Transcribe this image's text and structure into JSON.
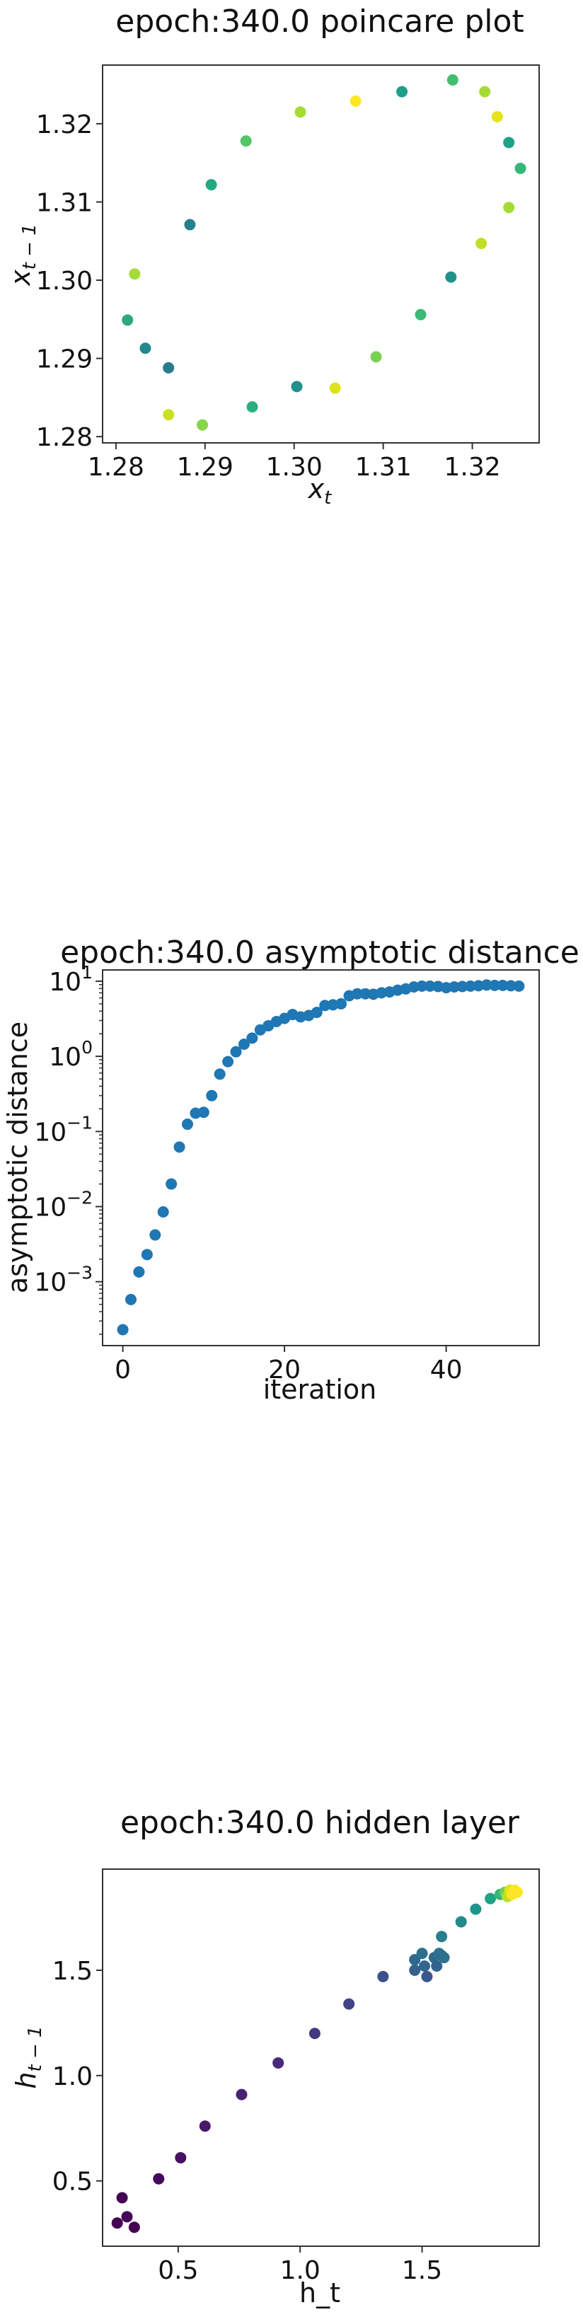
{
  "chart_data": [
    {
      "type": "scatter",
      "title": "epoch:340.0 poincare plot",
      "xlabel": "x_t",
      "ylabel": "x_{t-1}",
      "xlim": [
        1.2785,
        1.3275
      ],
      "ylim": [
        1.2792,
        1.3275
      ],
      "xticks": [
        1.28,
        1.29,
        1.3,
        1.31,
        1.32
      ],
      "xtick_labels": [
        "1.28",
        "1.29",
        "1.30",
        "1.31",
        "1.32"
      ],
      "yticks": [
        1.28,
        1.29,
        1.3,
        1.31,
        1.32
      ],
      "ytick_labels": [
        "1.28",
        "1.29",
        "1.30",
        "1.31",
        "1.32"
      ],
      "grid": false,
      "points": [
        {
          "x": 1.2813,
          "y": 1.2949,
          "color": "#2fa781"
        },
        {
          "x": 1.2821,
          "y": 1.3008,
          "color": "#a5db36"
        },
        {
          "x": 1.2833,
          "y": 1.2913,
          "color": "#23898e"
        },
        {
          "x": 1.2859,
          "y": 1.2888,
          "color": "#297b8e"
        },
        {
          "x": 1.2859,
          "y": 1.2828,
          "color": "#cae11f"
        },
        {
          "x": 1.2883,
          "y": 1.3071,
          "color": "#277f8e"
        },
        {
          "x": 1.2897,
          "y": 1.2815,
          "color": "#86d549"
        },
        {
          "x": 1.2907,
          "y": 1.3122,
          "color": "#22a884"
        },
        {
          "x": 1.2946,
          "y": 1.3178,
          "color": "#54c568"
        },
        {
          "x": 1.2953,
          "y": 1.2838,
          "color": "#2ab07f"
        },
        {
          "x": 1.3003,
          "y": 1.2864,
          "color": "#21918c"
        },
        {
          "x": 1.3007,
          "y": 1.3215,
          "color": "#a5db36"
        },
        {
          "x": 1.3046,
          "y": 1.2862,
          "color": "#dde318"
        },
        {
          "x": 1.3069,
          "y": 1.3229,
          "color": "#fde725"
        },
        {
          "x": 1.3092,
          "y": 1.2902,
          "color": "#7ad151"
        },
        {
          "x": 1.3121,
          "y": 1.3241,
          "color": "#1f9e89"
        },
        {
          "x": 1.3142,
          "y": 1.2956,
          "color": "#3bbb75"
        },
        {
          "x": 1.3176,
          "y": 1.3004,
          "color": "#21918c"
        },
        {
          "x": 1.3178,
          "y": 1.3256,
          "color": "#42be71"
        },
        {
          "x": 1.321,
          "y": 1.3047,
          "color": "#c0df25"
        },
        {
          "x": 1.3214,
          "y": 1.3241,
          "color": "#a5db36"
        },
        {
          "x": 1.3228,
          "y": 1.3209,
          "color": "#e5e419"
        },
        {
          "x": 1.3241,
          "y": 1.3093,
          "color": "#a5db36"
        },
        {
          "x": 1.3241,
          "y": 1.3176,
          "color": "#1fa187"
        },
        {
          "x": 1.3254,
          "y": 1.3143,
          "color": "#35b779"
        }
      ]
    },
    {
      "type": "scatter",
      "title": "epoch:340.0 asymptotic distance",
      "xlabel": "iteration",
      "ylabel": "asymptotic distance",
      "yscale": "log",
      "xlim": [
        -2.5,
        51.5
      ],
      "ylim_log10": [
        -3.85,
        1.15
      ],
      "xticks": [
        0,
        20,
        40
      ],
      "xtick_labels": [
        "0",
        "20",
        "40"
      ],
      "ytick_exponents": [
        1,
        0,
        -1,
        -2,
        -3
      ],
      "ytick_labels": [
        "10",
        "10",
        "10",
        "10",
        "10"
      ],
      "ytick_superscripts": [
        "1",
        "0",
        "−1",
        "−2",
        "−3"
      ],
      "grid": false,
      "color": "#1f77b4",
      "x": [
        0,
        1,
        2,
        3,
        4,
        5,
        6,
        7,
        8,
        9,
        10,
        11,
        12,
        13,
        14,
        15,
        16,
        17,
        18,
        19,
        20,
        21,
        22,
        23,
        24,
        25,
        26,
        27,
        28,
        29,
        30,
        31,
        32,
        33,
        34,
        35,
        36,
        37,
        38,
        39,
        40,
        41,
        42,
        43,
        44,
        45,
        46,
        47,
        48,
        49
      ],
      "y": [
        0.00023,
        0.00058,
        0.00135,
        0.0023,
        0.0042,
        0.0085,
        0.02,
        0.062,
        0.125,
        0.175,
        0.18,
        0.3,
        0.58,
        0.85,
        1.15,
        1.45,
        1.75,
        2.25,
        2.55,
        2.9,
        3.2,
        3.6,
        3.35,
        3.5,
        3.85,
        4.75,
        4.85,
        5.0,
        6.4,
        6.8,
        6.8,
        6.7,
        7.0,
        7.2,
        7.6,
        7.9,
        8.4,
        8.6,
        8.6,
        8.5,
        8.2,
        8.4,
        8.5,
        8.6,
        8.7,
        8.9,
        8.8,
        8.8,
        8.7,
        8.6
      ]
    },
    {
      "type": "scatter",
      "title": "epoch:340.0 hidden layer",
      "xlabel": "h_t",
      "ylabel": "h_{t-1}",
      "xlim": [
        0.19,
        1.98
      ],
      "ylim": [
        0.19,
        1.98
      ],
      "xticks": [
        0.5,
        1.0,
        1.5
      ],
      "xtick_labels": [
        "0.5",
        "1.0",
        "1.5"
      ],
      "yticks": [
        0.5,
        1.0,
        1.5
      ],
      "ytick_labels": [
        "0.5",
        "1.0",
        "1.5"
      ],
      "grid": false,
      "points": [
        {
          "x": 0.25,
          "y": 0.3,
          "color": "#440154"
        },
        {
          "x": 0.27,
          "y": 0.42,
          "color": "#440154"
        },
        {
          "x": 0.29,
          "y": 0.33,
          "color": "#450559"
        },
        {
          "x": 0.32,
          "y": 0.28,
          "color": "#440154"
        },
        {
          "x": 0.42,
          "y": 0.51,
          "color": "#46085c"
        },
        {
          "x": 0.51,
          "y": 0.61,
          "color": "#471063"
        },
        {
          "x": 0.61,
          "y": 0.76,
          "color": "#48186a"
        },
        {
          "x": 0.76,
          "y": 0.91,
          "color": "#482173"
        },
        {
          "x": 0.91,
          "y": 1.06,
          "color": "#472a7a"
        },
        {
          "x": 1.06,
          "y": 1.2,
          "color": "#453882"
        },
        {
          "x": 1.2,
          "y": 1.34,
          "color": "#414487"
        },
        {
          "x": 1.34,
          "y": 1.47,
          "color": "#3b518b"
        },
        {
          "x": 1.47,
          "y": 1.5,
          "color": "#33638d"
        },
        {
          "x": 1.47,
          "y": 1.55,
          "color": "#30698e"
        },
        {
          "x": 1.5,
          "y": 1.58,
          "color": "#2d708e"
        },
        {
          "x": 1.51,
          "y": 1.52,
          "color": "#31678e"
        },
        {
          "x": 1.52,
          "y": 1.47,
          "color": "#38588c"
        },
        {
          "x": 1.55,
          "y": 1.56,
          "color": "#2f6b8e"
        },
        {
          "x": 1.56,
          "y": 1.52,
          "color": "#33638d"
        },
        {
          "x": 1.57,
          "y": 1.58,
          "color": "#2b748e"
        },
        {
          "x": 1.58,
          "y": 1.57,
          "color": "#2e6e8e"
        },
        {
          "x": 1.58,
          "y": 1.66,
          "color": "#287d8e"
        },
        {
          "x": 1.59,
          "y": 1.56,
          "color": "#2c728e"
        },
        {
          "x": 1.66,
          "y": 1.73,
          "color": "#23898e"
        },
        {
          "x": 1.72,
          "y": 1.79,
          "color": "#1f968b"
        },
        {
          "x": 1.78,
          "y": 1.84,
          "color": "#20a386"
        },
        {
          "x": 1.82,
          "y": 1.86,
          "color": "#35b779"
        },
        {
          "x": 1.84,
          "y": 1.87,
          "color": "#6ccd5a"
        },
        {
          "x": 1.85,
          "y": 1.85,
          "color": "#bddf26"
        },
        {
          "x": 1.86,
          "y": 1.88,
          "color": "#dde318"
        },
        {
          "x": 1.87,
          "y": 1.86,
          "color": "#fde725"
        },
        {
          "x": 1.88,
          "y": 1.88,
          "color": "#fde725"
        },
        {
          "x": 1.89,
          "y": 1.87,
          "color": "#fde725"
        }
      ]
    }
  ]
}
